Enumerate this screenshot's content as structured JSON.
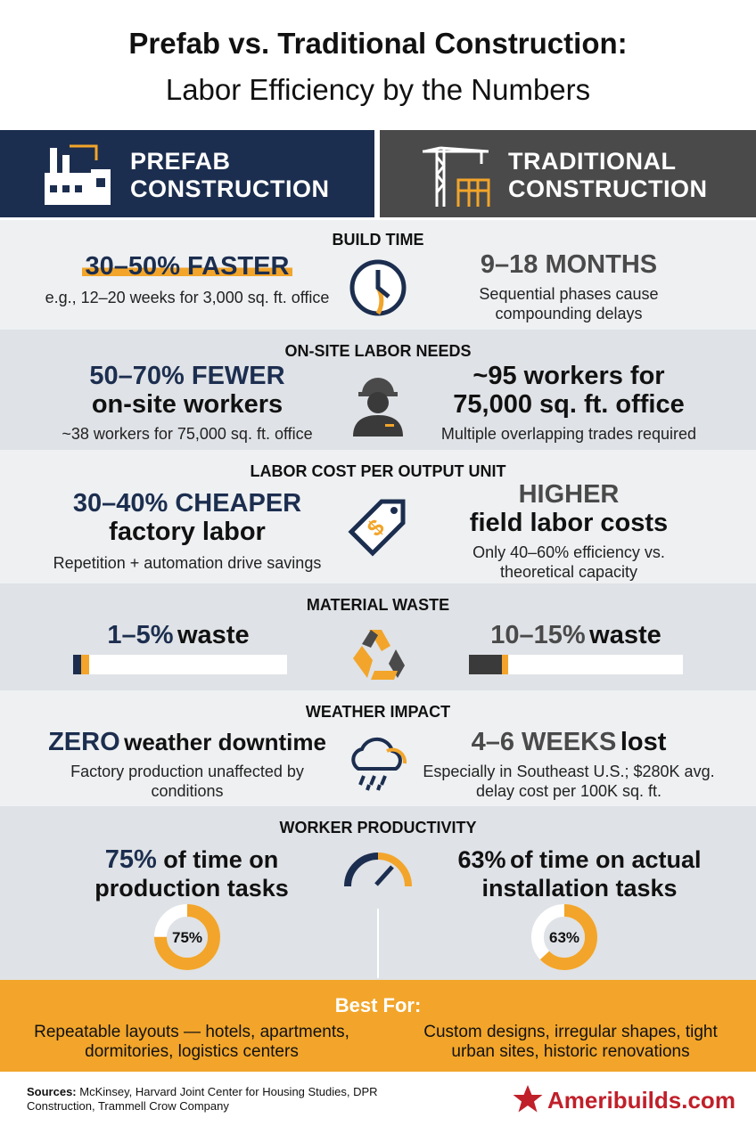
{
  "title": {
    "line1": "Prefab vs. Traditional Construction:",
    "line2": "Labor Efficiency by the Numbers"
  },
  "header": {
    "left": [
      "PREFAB",
      "CONSTRUCTION"
    ],
    "right": [
      "TRADITIONAL",
      "CONSTRUCTION"
    ]
  },
  "sections": [
    {
      "title": "BUILD TIME",
      "left": {
        "head": "30–50% FASTER",
        "sub": "e.g., 12–20 weeks for 3,000 sq. ft. office"
      },
      "right": {
        "head": "9–18 MONTHS",
        "sub": "Sequential phases cause compounding delays"
      }
    },
    {
      "title": "ON-SITE LABOR NEEDS",
      "left": {
        "head": "50–70% FEWER",
        "head2": "on-site workers",
        "sub": "~38 workers for 75,000 sq. ft. office"
      },
      "right": {
        "head": "~95 workers for",
        "head2": "75,000 sq. ft. office",
        "sub": "Multiple overlapping trades required"
      }
    },
    {
      "title": "LABOR COST PER OUTPUT UNIT",
      "left": {
        "head": "30–40% CHEAPER",
        "head2": "factory labor",
        "sub": "Repetition + automation drive savings"
      },
      "right": {
        "head": "HIGHER",
        "head2": "field labor costs",
        "sub": "Only 40–60% efficiency vs. theoretical capacity"
      }
    },
    {
      "title": "MATERIAL WASTE",
      "left": {
        "head": "1–5%",
        "head2": "waste"
      },
      "right": {
        "head": "10–15%",
        "head2": "waste"
      }
    },
    {
      "title": "WEATHER IMPACT",
      "left": {
        "head": "ZERO",
        "head2": "weather downtime",
        "sub": "Factory production unaffected by conditions"
      },
      "right": {
        "head": "4–6 WEEKS",
        "head2": "lost",
        "sub": "Especially in Southeast U.S.; $280K avg. delay cost per 100K sq. ft."
      }
    },
    {
      "title": "WORKER PRODUCTIVITY",
      "left": {
        "head": "75%",
        "head2": "of time on production tasks",
        "donut": {
          "value": 75,
          "label": "75%"
        }
      },
      "right": {
        "head": "63%",
        "head2": "of time on actual installation tasks",
        "donut": {
          "value": 63,
          "label": "63%"
        }
      }
    }
  ],
  "best_for": {
    "title": "Best For:",
    "left": "Repeatable layouts — hotels, apartments, dormitories, logistics centers",
    "right": "Custom designs, irregular shapes, tight urban sites, historic renovations"
  },
  "footer": {
    "sources_label": "Sources:",
    "sources": "McKinsey, Harvard Joint Center for Housing Studies, DPR Construction, Trammell Crow Company",
    "brand": "Ameribuilds.com"
  }
}
